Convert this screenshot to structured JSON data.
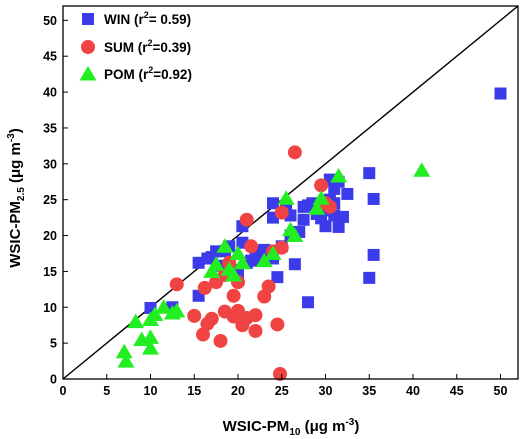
{
  "chart_data": {
    "type": "scatter",
    "xlabel": {
      "main": "WSIC-PM",
      "sub": "10",
      "unit_pre": " (μg m",
      "unit_sup": "-3",
      "unit_post": ")"
    },
    "ylabel": {
      "main": "WSIC-PM",
      "sub": "2.5",
      "unit_pre": " (μg m",
      "unit_sup": "-3",
      "unit_post": ")"
    },
    "xlim": [
      0,
      52
    ],
    "ylim": [
      0,
      52
    ],
    "xticks": [
      "0",
      "5",
      "10",
      "15",
      "20",
      "25",
      "30",
      "35",
      "40",
      "45",
      "50"
    ],
    "yticks": [
      "0",
      "5",
      "10",
      "15",
      "20",
      "25",
      "30",
      "35",
      "40",
      "45",
      "50"
    ],
    "reference_line": {
      "type": "1:1",
      "from": [
        0,
        0
      ],
      "to": [
        52,
        52
      ]
    },
    "legend_position": "top-left",
    "series": [
      {
        "name": "WIN",
        "r2_pre": " (r",
        "r2_sup": "2",
        "r2_post": "= 0.59)",
        "marker": "square",
        "color": "#3b3bea",
        "points": [
          [
            10,
            9.9
          ],
          [
            12.5,
            10
          ],
          [
            15.5,
            11.6
          ],
          [
            15.5,
            16.2
          ],
          [
            16.5,
            16.8
          ],
          [
            17,
            17
          ],
          [
            17.5,
            17.8
          ],
          [
            18,
            15.8
          ],
          [
            18.5,
            17.8
          ],
          [
            19,
            18.5
          ],
          [
            19.5,
            15.2
          ],
          [
            20,
            14.5
          ],
          [
            20.5,
            19
          ],
          [
            20.5,
            21.3
          ],
          [
            21,
            16.2
          ],
          [
            21.5,
            16.5
          ],
          [
            22,
            17.8
          ],
          [
            22.5,
            16.8
          ],
          [
            23,
            18
          ],
          [
            23.5,
            17.5
          ],
          [
            24,
            16.8
          ],
          [
            24,
            22.5
          ],
          [
            24,
            24.5
          ],
          [
            24.5,
            14.2
          ],
          [
            25,
            18.5
          ],
          [
            25.5,
            23.8
          ],
          [
            26,
            20
          ],
          [
            26,
            22.8
          ],
          [
            26.5,
            16
          ],
          [
            27,
            20.5
          ],
          [
            27.5,
            24
          ],
          [
            27.5,
            22.2
          ],
          [
            28,
            24.2
          ],
          [
            28,
            10.7
          ],
          [
            28.5,
            24.5
          ],
          [
            29,
            23
          ],
          [
            29.5,
            24.2
          ],
          [
            29.5,
            22.4
          ],
          [
            30,
            21.3
          ],
          [
            30,
            23.5
          ],
          [
            30.5,
            27.8
          ],
          [
            30.5,
            25
          ],
          [
            31,
            26.5
          ],
          [
            31,
            24.5
          ],
          [
            31,
            22.8
          ],
          [
            31.5,
            21.2
          ],
          [
            31.5,
            27.5
          ],
          [
            32,
            22.6
          ],
          [
            32.5,
            25.8
          ],
          [
            35,
            28.7
          ],
          [
            35,
            14.1
          ],
          [
            35.5,
            25.1
          ],
          [
            35.5,
            17.3
          ],
          [
            50,
            39.8
          ]
        ]
      },
      {
        "name": "SUM",
        "r2_pre": " (r",
        "r2_sup": "2",
        "r2_post": "=0.39)",
        "marker": "circle",
        "color": "#f04444",
        "points": [
          [
            13,
            13.2
          ],
          [
            15,
            8.8
          ],
          [
            16,
            6.2
          ],
          [
            16.2,
            12.7
          ],
          [
            16.5,
            7.7
          ],
          [
            17,
            8.4
          ],
          [
            17.5,
            13.5
          ],
          [
            18,
            5.3
          ],
          [
            18.5,
            9.4
          ],
          [
            18.5,
            14.5
          ],
          [
            19,
            16.2
          ],
          [
            19.5,
            11.6
          ],
          [
            19.5,
            8.7
          ],
          [
            20,
            9.5
          ],
          [
            20,
            13.5
          ],
          [
            20.5,
            7.5
          ],
          [
            20.5,
            8
          ],
          [
            21,
            22.2
          ],
          [
            21,
            8.5
          ],
          [
            21.5,
            18.5
          ],
          [
            22,
            6.7
          ],
          [
            22,
            8.9
          ],
          [
            23,
            11.5
          ],
          [
            23.5,
            12.9
          ],
          [
            24,
            17.8
          ],
          [
            24.5,
            7.6
          ],
          [
            24.8,
            0.7
          ],
          [
            25,
            23.2
          ],
          [
            25,
            18.3
          ],
          [
            26.5,
            31.6
          ],
          [
            29.5,
            27
          ],
          [
            30,
            24.5
          ],
          [
            30.5,
            24
          ]
        ]
      },
      {
        "name": "POM",
        "r2_pre": " (r",
        "r2_sup": "2",
        "r2_post": "=0.92)",
        "marker": "triangle",
        "color": "#22ee22",
        "points": [
          [
            7,
            3.8
          ],
          [
            7.2,
            2.5
          ],
          [
            8.3,
            8
          ],
          [
            9,
            5.5
          ],
          [
            10,
            4.3
          ],
          [
            10,
            5.8
          ],
          [
            10,
            8.3
          ],
          [
            10.5,
            9
          ],
          [
            11.5,
            10
          ],
          [
            12.5,
            9.2
          ],
          [
            13,
            9.5
          ],
          [
            17,
            15
          ],
          [
            17.5,
            16
          ],
          [
            18.5,
            18.5
          ],
          [
            19,
            15.3
          ],
          [
            19.5,
            14.5
          ],
          [
            20,
            17.5
          ],
          [
            20.5,
            16.2
          ],
          [
            23,
            16.5
          ],
          [
            24,
            17.5
          ],
          [
            25.5,
            25.2
          ],
          [
            26,
            20.8
          ],
          [
            26.5,
            20
          ],
          [
            29,
            23.8
          ],
          [
            29.5,
            25.2
          ],
          [
            31.5,
            28.3
          ],
          [
            41,
            29.1
          ]
        ]
      }
    ]
  }
}
